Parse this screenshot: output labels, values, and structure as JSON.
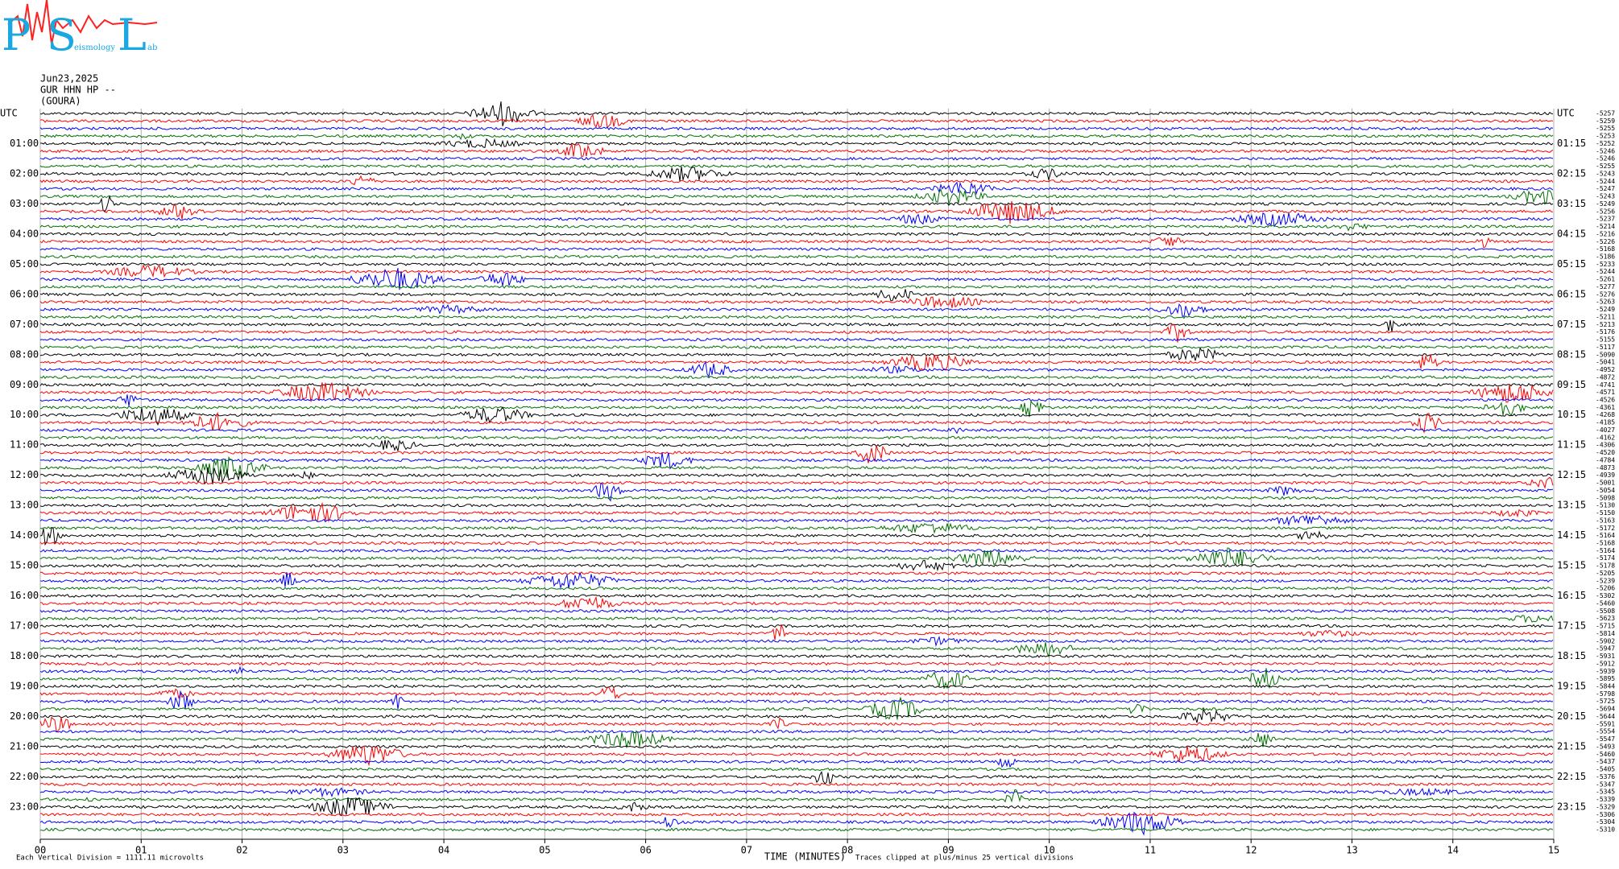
{
  "chart_data": {
    "type": "helicorder",
    "logo": {
      "letters": [
        "P",
        "S",
        "L"
      ],
      "words": [
        "eismology",
        "ab"
      ]
    },
    "date": "Jun23,2025",
    "station": "GUR HHN HP --",
    "site": "(GOURA)",
    "left_labels": [
      "UTC",
      "01:00",
      "02:00",
      "03:00",
      "04:00",
      "05:00",
      "06:00",
      "07:00",
      "08:00",
      "09:00",
      "10:00",
      "11:00",
      "12:00",
      "13:00",
      "14:00",
      "15:00",
      "16:00",
      "17:00",
      "18:00",
      "19:00",
      "20:00",
      "21:00",
      "22:00",
      "23:00"
    ],
    "right_labels": [
      "UTC",
      "01:15",
      "02:15",
      "03:15",
      "04:15",
      "05:15",
      "06:15",
      "07:15",
      "08:15",
      "09:15",
      "10:15",
      "11:15",
      "12:15",
      "13:15",
      "14:15",
      "15:15",
      "16:15",
      "17:15",
      "18:15",
      "19:15",
      "20:15",
      "21:15",
      "22:15",
      "23:15"
    ],
    "trace_offsets": [
      -5257,
      -5259,
      -5255,
      -5253,
      -5252,
      -5246,
      -5246,
      -5255,
      -5243,
      -5244,
      -5247,
      -5243,
      -5249,
      -5256,
      -5237,
      -5214,
      -5216,
      -5226,
      -5168,
      -5186,
      -5233,
      -5244,
      -5261,
      -5277,
      -5276,
      -5263,
      -5249,
      -5211,
      -5213,
      -5176,
      -5155,
      -5117,
      -5090,
      -5041,
      -4952,
      -4872,
      -4741,
      -4571,
      -4526,
      -4361,
      -4268,
      -4185,
      -4027,
      -4162,
      -4306,
      -4520,
      -4784,
      -4873,
      -4939,
      -5001,
      -5054,
      -5098,
      -5130,
      -5150,
      -5163,
      -5172,
      -5164,
      -5168,
      -5164,
      -5174,
      -5178,
      -5205,
      -5239,
      -5206,
      -5302,
      -5460,
      -5508,
      -5623,
      -5715,
      -5814,
      -5902,
      -5947,
      -5931,
      -5912,
      -5939,
      -5895,
      -5844,
      -5798,
      -5725,
      -5694,
      -5644,
      -5591,
      -5554,
      -5547,
      -5493,
      -5460,
      -5437,
      -5405,
      -5376,
      -5347,
      -5345,
      -5339,
      -5329,
      -5306,
      -5304,
      -5310
    ],
    "trace_colors": [
      "#000000",
      "#ff0000",
      "#0000ff",
      "#007000"
    ],
    "xlim": [
      0,
      15
    ],
    "xticks": [
      {
        "value": 0,
        "label": "00"
      },
      {
        "value": 1,
        "label": "01"
      },
      {
        "value": 2,
        "label": "02"
      },
      {
        "value": 3,
        "label": "03"
      },
      {
        "value": 4,
        "label": "04"
      },
      {
        "value": 5,
        "label": "05"
      },
      {
        "value": 6,
        "label": "06"
      },
      {
        "value": 7,
        "label": "07"
      },
      {
        "value": 8,
        "label": "08"
      },
      {
        "value": 9,
        "label": "09"
      },
      10,
      11,
      12,
      13,
      14,
      15
    ],
    "xlabel": "TIME (MINUTES)",
    "scale_note": "Each Vertical Division = 1111.11 microvolts",
    "clip_note": "Traces clipped at plus/minus 25 vertical divisions",
    "grid": true
  }
}
